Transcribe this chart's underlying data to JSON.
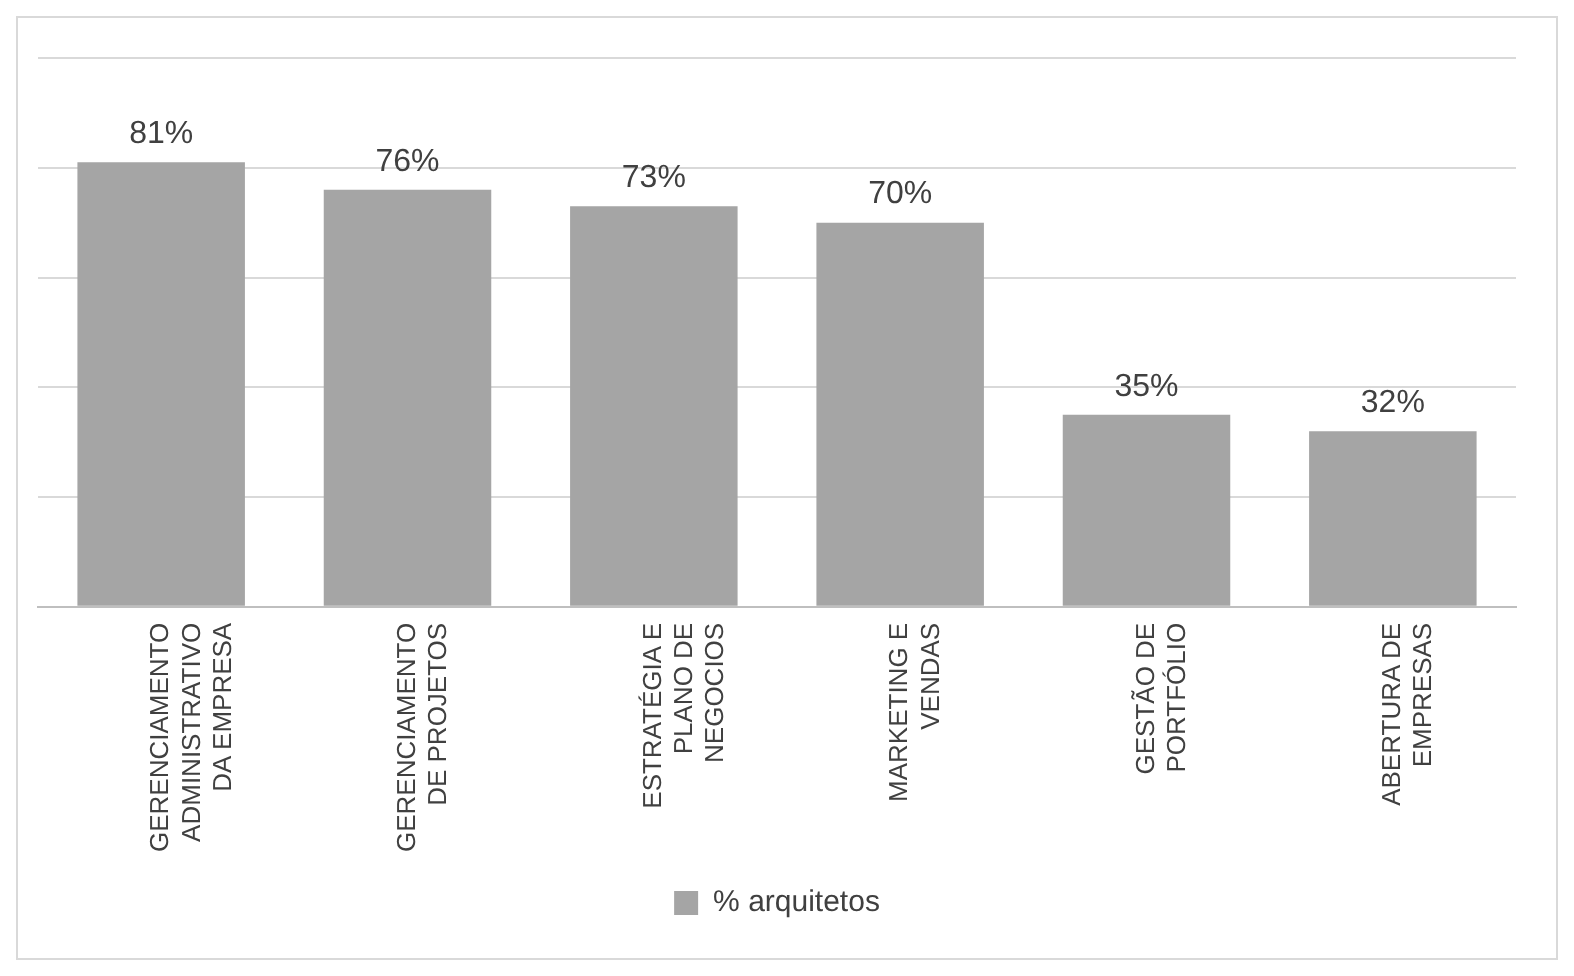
{
  "chart_data": {
    "type": "bar",
    "categories": [
      "GERENCIAMENTO ADMINISTRATIVO DA EMPRESA",
      "GERENCIAMENTO DE PROJETOS",
      "ESTRATÉGIA E PLANO DE NEGOCIOS",
      "MARKETING E VENDAS",
      "GESTÃO DE PORTFÓLIO",
      "ABERTURA DE EMPRESAS"
    ],
    "series": [
      {
        "name": "% arquitetos",
        "color": "#a5a5a5",
        "values": [
          81,
          76,
          73,
          70,
          35,
          32
        ],
        "value_labels": [
          "81%",
          "76%",
          "73%",
          "70%",
          "35%",
          "32%"
        ]
      }
    ],
    "ylim": [
      0,
      100
    ],
    "yticks": [
      {
        "value": 0,
        "label": null
      },
      {
        "value": 20,
        "label": null
      },
      {
        "value": 40,
        "label": null
      },
      {
        "value": 60,
        "label": null
      },
      {
        "value": 80,
        "label": null
      },
      {
        "value": 100,
        "label": null
      }
    ],
    "grid": "y",
    "tick_labels": "x",
    "legend": "bottom"
  }
}
